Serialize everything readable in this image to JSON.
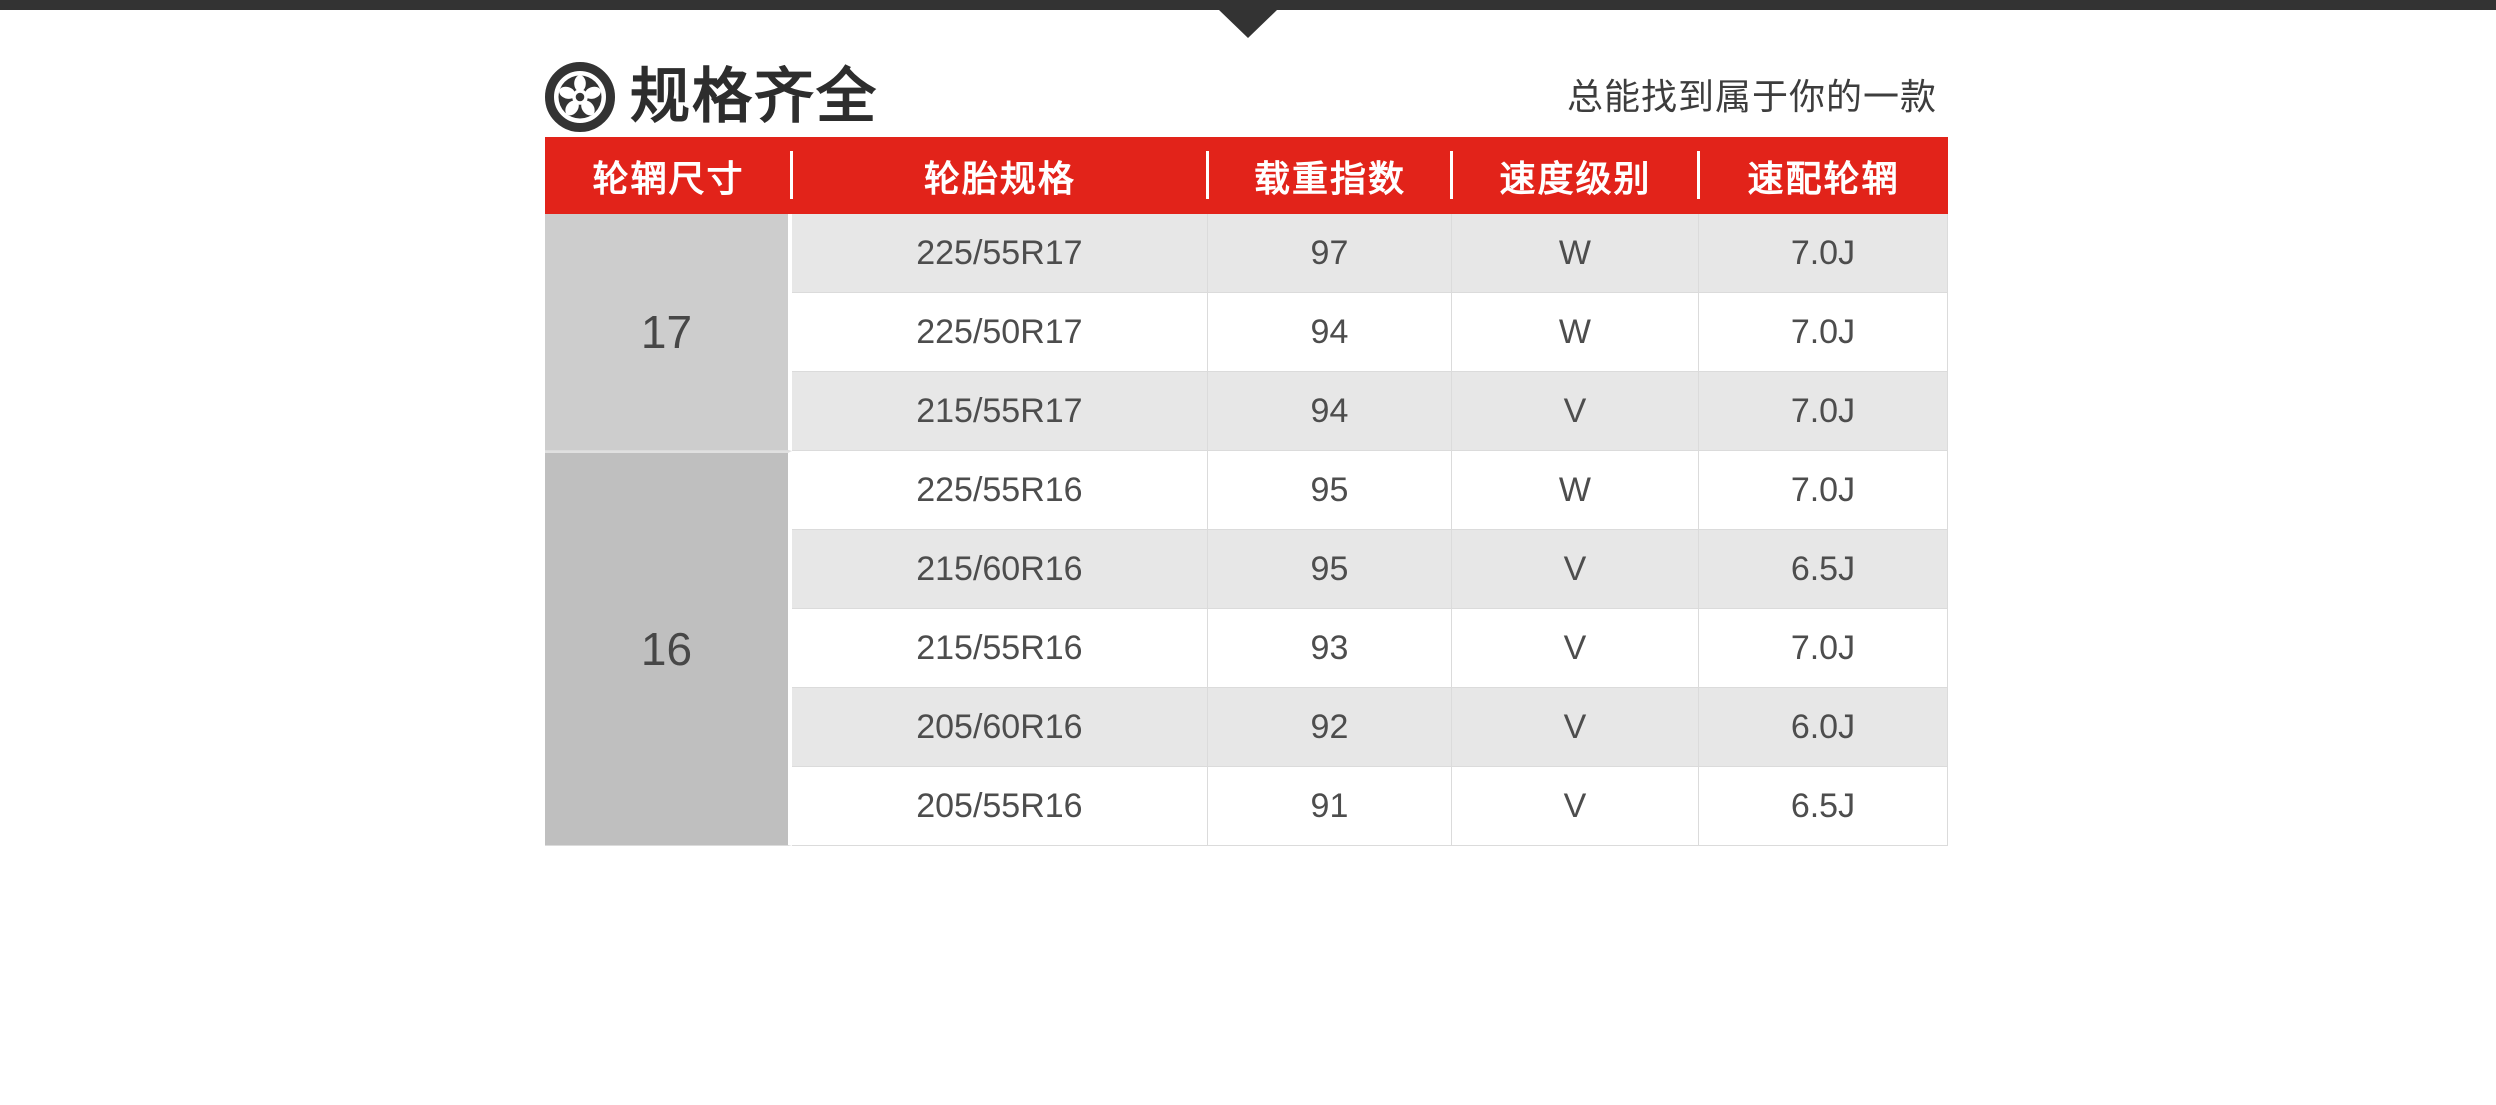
{
  "colors": {
    "accent_red": "#e2231a",
    "top_bar_dark": "#333333",
    "rim_col_gray_17": "#cdcdcd",
    "rim_col_gray_16": "#bfbfbf",
    "row_stripe_gray": "#e7e7e7",
    "body_text": "#4d4d4d"
  },
  "header": {
    "icon": "wheel-icon",
    "title": "规格齐全",
    "subtitle": "总能找到属于你的一款"
  },
  "table": {
    "columns": [
      "轮辋尺寸",
      "轮胎规格",
      "载重指数",
      "速度级别",
      "速配轮辋"
    ],
    "groups": [
      {
        "rim": "17",
        "rows": [
          {
            "spec": "225/55R17",
            "load": "97",
            "speed": "W",
            "rim_width": "7.0J"
          },
          {
            "spec": "225/50R17",
            "load": "94",
            "speed": "W",
            "rim_width": "7.0J"
          },
          {
            "spec": "215/55R17",
            "load": "94",
            "speed": "V",
            "rim_width": "7.0J"
          }
        ]
      },
      {
        "rim": "16",
        "rows": [
          {
            "spec": "225/55R16",
            "load": "95",
            "speed": "W",
            "rim_width": "7.0J"
          },
          {
            "spec": "215/60R16",
            "load": "95",
            "speed": "V",
            "rim_width": "6.5J"
          },
          {
            "spec": "215/55R16",
            "load": "93",
            "speed": "V",
            "rim_width": "7.0J"
          },
          {
            "spec": "205/60R16",
            "load": "92",
            "speed": "V",
            "rim_width": "6.0J"
          },
          {
            "spec": "205/55R16",
            "load": "91",
            "speed": "V",
            "rim_width": "6.5J"
          }
        ]
      }
    ]
  }
}
